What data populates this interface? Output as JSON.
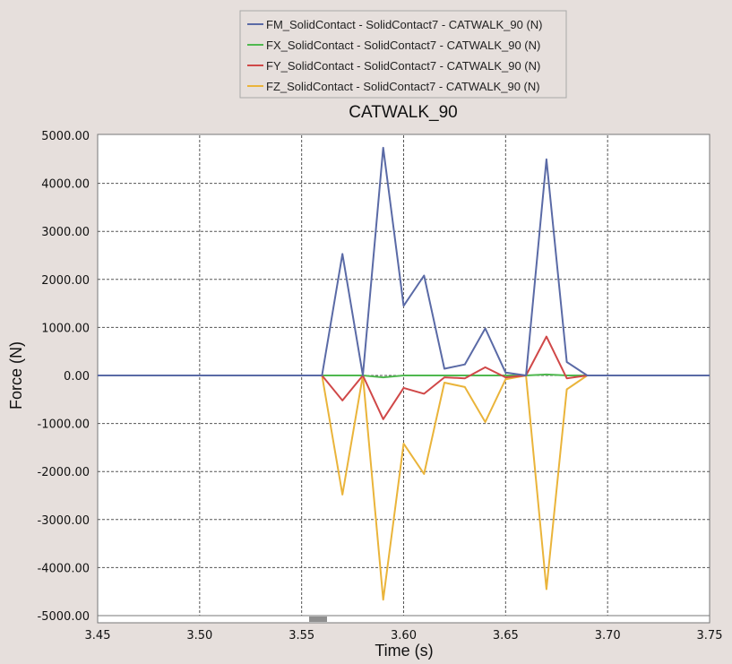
{
  "colors": {
    "background": "#e6dfdc",
    "plot_background": "#ffffff",
    "grid": "#555555",
    "scrollbar_thumb": "#8f8f8f"
  },
  "chart_data": {
    "type": "line",
    "title": "CATWALK_90",
    "xlabel": "Time (s)",
    "ylabel": "Force (N)",
    "xlim": [
      3.45,
      3.75
    ],
    "ylim": [
      -5000,
      5000
    ],
    "x_ticks": [
      "3.45",
      "3.50",
      "3.55",
      "3.60",
      "3.65",
      "3.70",
      "3.75"
    ],
    "y_ticks": [
      "5000.00",
      "4000.00",
      "3000.00",
      "2000.00",
      "1000.00",
      "0.00",
      "-1000.00",
      "-2000.00",
      "-3000.00",
      "-4000.00",
      "-5000.00"
    ],
    "grid": true,
    "legend_position": "top-center",
    "x": [
      3.45,
      3.56,
      3.57,
      3.58,
      3.59,
      3.6,
      3.61,
      3.62,
      3.63,
      3.64,
      3.65,
      3.66,
      3.67,
      3.68,
      3.69,
      3.75
    ],
    "series": [
      {
        "name": "FM_SolidContact - SolidContact7 - CATWALK_90 (N)",
        "color": "#5a6aa6",
        "values": [
          0,
          0,
          2530,
          0,
          4740,
          1450,
          2080,
          140,
          230,
          980,
          60,
          0,
          4500,
          280,
          0,
          0
        ]
      },
      {
        "name": "FX_SolidContact - SolidContact7 - CATWALK_90 (N)",
        "color": "#4fb84f",
        "values": [
          0,
          0,
          0,
          0,
          -40,
          0,
          0,
          0,
          0,
          0,
          0,
          0,
          20,
          0,
          0,
          0
        ]
      },
      {
        "name": "FY_SolidContact - SolidContact7 - CATWALK_90 (N)",
        "color": "#d04848",
        "values": [
          0,
          0,
          -520,
          0,
          -910,
          -260,
          -380,
          -40,
          -60,
          170,
          -40,
          0,
          810,
          -60,
          0,
          0
        ]
      },
      {
        "name": "FZ_SolidContact - SolidContact7 - CATWALK_90 (N)",
        "color": "#eab43a",
        "values": [
          0,
          0,
          -2480,
          0,
          -4670,
          -1420,
          -2050,
          -150,
          -240,
          -970,
          -80,
          0,
          -4450,
          -290,
          0,
          0
        ]
      }
    ]
  }
}
